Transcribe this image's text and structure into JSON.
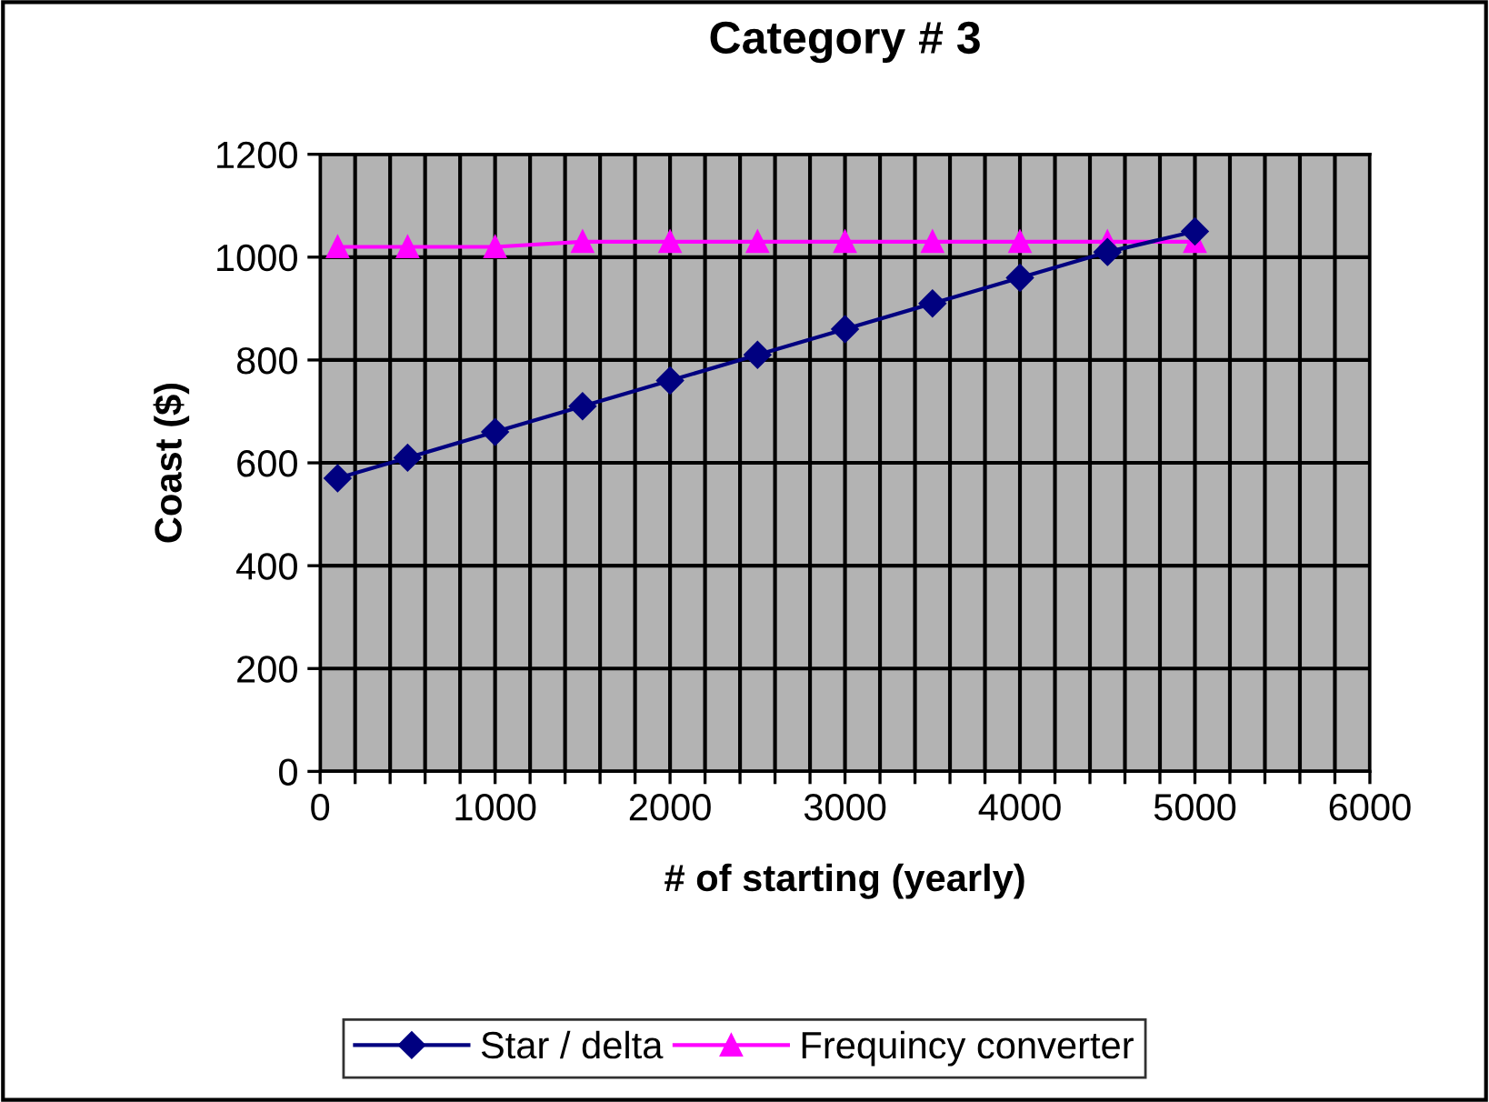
{
  "chart_data": {
    "type": "line",
    "title": "Category # 3",
    "xlabel": "# of starting (yearly)",
    "ylabel": "Coast ($)",
    "x": [
      100,
      500,
      1000,
      1500,
      2000,
      2500,
      3000,
      3500,
      4000,
      4500,
      5000
    ],
    "series": [
      {
        "name": "Star / delta",
        "color": "#000080",
        "marker": "diamond",
        "values": [
          570,
          610,
          660,
          710,
          760,
          810,
          860,
          910,
          960,
          1010,
          1050
        ]
      },
      {
        "name": "Frequincy converter",
        "color": "#ff00ff",
        "marker": "triangle",
        "values": [
          1020,
          1020,
          1020,
          1030,
          1030,
          1030,
          1030,
          1030,
          1030,
          1030,
          1030
        ]
      }
    ],
    "xlim": [
      0,
      6000
    ],
    "ylim": [
      0,
      1200
    ],
    "xticks": [
      0,
      {
        "value": 200,
        "label": null
      },
      {
        "value": 400,
        "label": null
      },
      {
        "value": 600,
        "label": null
      },
      {
        "value": 800,
        "label": null
      },
      1000,
      {
        "value": 1200,
        "label": null
      },
      {
        "value": 1400,
        "label": null
      },
      {
        "value": 1600,
        "label": null
      },
      {
        "value": 1800,
        "label": null
      },
      2000,
      {
        "value": 2200,
        "label": null
      },
      {
        "value": 2400,
        "label": null
      },
      {
        "value": 2600,
        "label": null
      },
      {
        "value": 2800,
        "label": null
      },
      3000,
      {
        "value": 3200,
        "label": null
      },
      {
        "value": 3400,
        "label": null
      },
      {
        "value": 3600,
        "label": null
      },
      {
        "value": 3800,
        "label": null
      },
      4000,
      {
        "value": 4200,
        "label": null
      },
      {
        "value": 4400,
        "label": null
      },
      {
        "value": 4600,
        "label": null
      },
      {
        "value": 4800,
        "label": null
      },
      5000,
      {
        "value": 5200,
        "label": null
      },
      {
        "value": 5400,
        "label": null
      },
      {
        "value": 5600,
        "label": null
      },
      {
        "value": 5800,
        "label": null
      },
      6000
    ],
    "yticks": [
      0,
      200,
      400,
      600,
      800,
      1000,
      1200
    ],
    "grid": true,
    "legend": "bottom",
    "line_style": "solid"
  }
}
